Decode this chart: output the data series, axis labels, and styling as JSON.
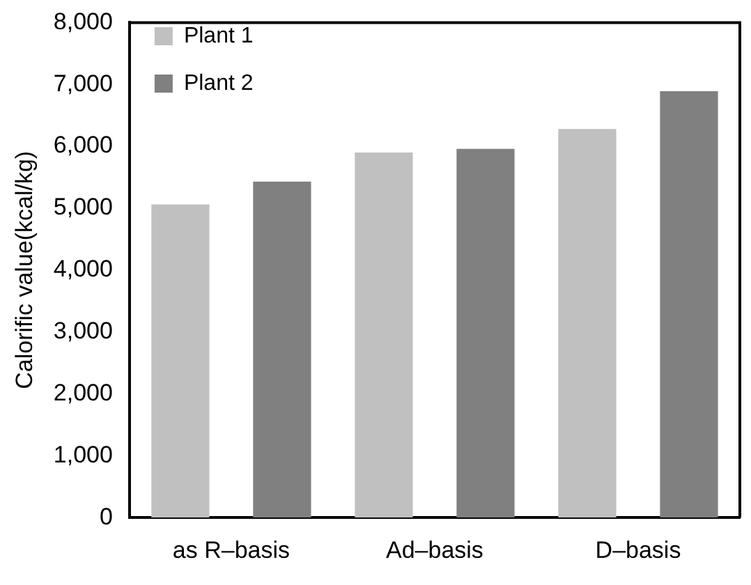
{
  "chart_data": {
    "type": "bar",
    "ylabel": "Calorific value(kcal/kg)",
    "categories": [
      "as R–basis",
      "Ad–basis",
      "D–basis"
    ],
    "series": [
      {
        "name": "Plant 1",
        "color": "#c0c0c0",
        "values": [
          5060,
          5900,
          6280
        ]
      },
      {
        "name": "Plant 2",
        "color": "#808080",
        "values": [
          5430,
          5960,
          6890
        ]
      }
    ],
    "ylim": [
      0,
      8000
    ],
    "yticks": [
      {
        "value": 0,
        "label": "0"
      },
      {
        "value": 1000,
        "label": "1,000"
      },
      {
        "value": 2000,
        "label": "2,000"
      },
      {
        "value": 3000,
        "label": "3,000"
      },
      {
        "value": 4000,
        "label": "4,000"
      },
      {
        "value": 5000,
        "label": "5,000"
      },
      {
        "value": 6000,
        "label": "6,000"
      },
      {
        "value": 7000,
        "label": "7,000"
      },
      {
        "value": 8000,
        "label": "8,000"
      }
    ],
    "grid": false,
    "legend": "top left"
  }
}
